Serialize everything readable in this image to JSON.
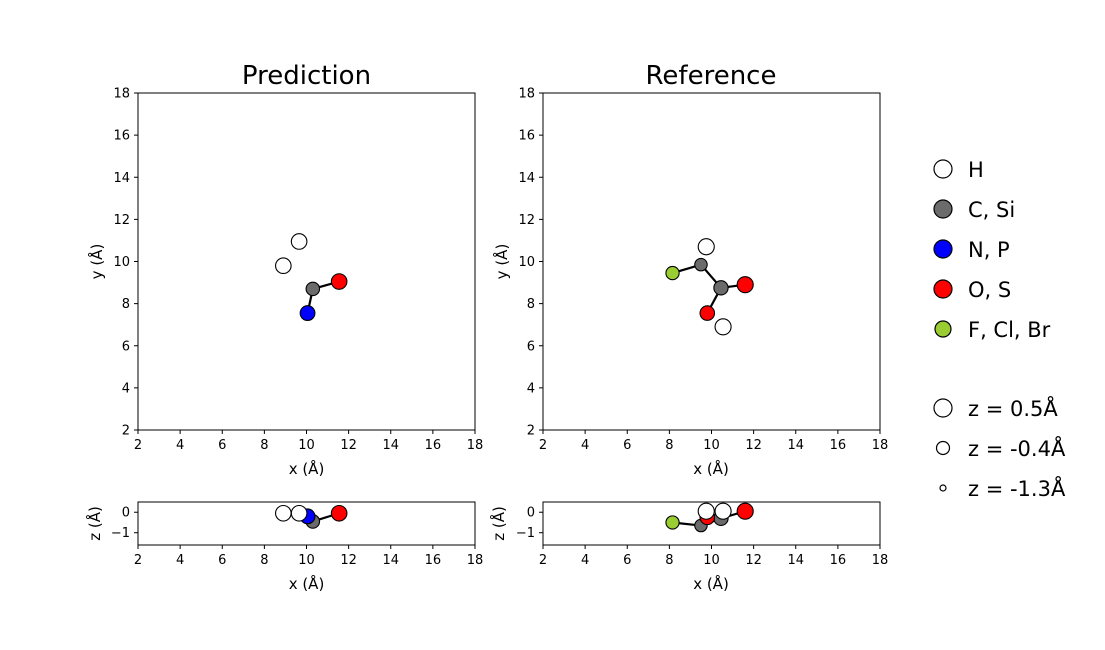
{
  "chart_data": [
    {
      "type": "scatter",
      "title": "Prediction",
      "xlabel": "x (Å)",
      "ylabel": "y (Å)",
      "xlim": [
        2,
        18
      ],
      "ylim": [
        2,
        18
      ],
      "xticks": [
        "2",
        "4",
        "6",
        "8",
        "10",
        "12",
        "14",
        "16",
        "18"
      ],
      "yticks": [
        "2",
        "4",
        "6",
        "8",
        "10",
        "12",
        "14",
        "16",
        "18"
      ],
      "atoms": [
        {
          "element": "H",
          "x": 9.65,
          "y": 10.95,
          "z": -0.05
        },
        {
          "element": "H",
          "x": 8.9,
          "y": 9.8,
          "z": -0.05
        },
        {
          "element": "C",
          "x": 10.3,
          "y": 8.7,
          "z": -0.45
        },
        {
          "element": "O",
          "x": 11.55,
          "y": 9.05,
          "z": -0.05
        },
        {
          "element": "N",
          "x": 10.05,
          "y": 7.55,
          "z": -0.2
        }
      ],
      "bonds": [
        [
          2,
          3
        ],
        [
          2,
          4
        ]
      ]
    },
    {
      "type": "scatter",
      "title": "Reference",
      "xlabel": "x (Å)",
      "ylabel": "y (Å)",
      "xlim": [
        2,
        18
      ],
      "ylim": [
        2,
        18
      ],
      "xticks": [
        "2",
        "4",
        "6",
        "8",
        "10",
        "12",
        "14",
        "16",
        "18"
      ],
      "yticks": [
        "2",
        "4",
        "6",
        "8",
        "10",
        "12",
        "14",
        "16",
        "18"
      ],
      "atoms": [
        {
          "element": "H",
          "x": 9.75,
          "y": 10.7,
          "z": 0.05
        },
        {
          "element": "C",
          "x": 9.5,
          "y": 9.85,
          "z": -0.65
        },
        {
          "element": "F",
          "x": 8.15,
          "y": 9.45,
          "z": -0.5
        },
        {
          "element": "C",
          "x": 10.45,
          "y": 8.75,
          "z": -0.3
        },
        {
          "element": "O",
          "x": 11.6,
          "y": 8.9,
          "z": 0.05
        },
        {
          "element": "O",
          "x": 9.8,
          "y": 7.55,
          "z": -0.25
        },
        {
          "element": "H",
          "x": 10.55,
          "y": 6.9,
          "z": 0.05
        }
      ],
      "bonds": [
        [
          1,
          2
        ],
        [
          1,
          3
        ],
        [
          3,
          4
        ],
        [
          3,
          5
        ]
      ]
    }
  ],
  "side_views": [
    {
      "xlabel": "x (Å)",
      "ylabel": "z (Å)",
      "xlim": [
        2,
        18
      ],
      "zlim": [
        -1.6,
        0.5
      ],
      "xticks": [
        "2",
        "4",
        "6",
        "8",
        "10",
        "12",
        "14",
        "16",
        "18"
      ],
      "zticks": [
        "0",
        "−1"
      ]
    },
    {
      "xlabel": "x (Å)",
      "ylabel": "z (Å)",
      "xlim": [
        2,
        18
      ],
      "zlim": [
        -1.6,
        0.5
      ],
      "xticks": [
        "2",
        "4",
        "6",
        "8",
        "10",
        "12",
        "14",
        "16",
        "18"
      ],
      "zticks": [
        "0",
        "−1"
      ]
    }
  ],
  "legend": {
    "elements": [
      {
        "label": "H",
        "color": "#ffffff"
      },
      {
        "label": "C, Si",
        "color": "#6b6b6b"
      },
      {
        "label": "N, P",
        "color": "#0000ff"
      },
      {
        "label": "O, S",
        "color": "#ff0000"
      },
      {
        "label": "F, Cl, Br",
        "color": "#9acd32"
      }
    ],
    "sizes": [
      {
        "label": "z = 0.5Å",
        "z": 0.5
      },
      {
        "label": "z = -0.4Å",
        "z": -0.4
      },
      {
        "label": "z = -1.3Å",
        "z": -1.3
      }
    ]
  },
  "element_colors": {
    "H": "#ffffff",
    "C": "#6b6b6b",
    "N": "#0000ff",
    "O": "#ff0000",
    "F": "#9acd32"
  }
}
